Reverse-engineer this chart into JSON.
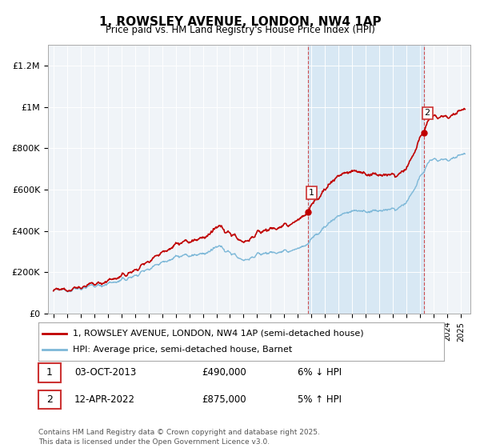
{
  "title": "1, ROWSLEY AVENUE, LONDON, NW4 1AP",
  "subtitle": "Price paid vs. HM Land Registry's House Price Index (HPI)",
  "legend_line1": "1, ROWSLEY AVENUE, LONDON, NW4 1AP (semi-detached house)",
  "legend_line2": "HPI: Average price, semi-detached house, Barnet",
  "footnote": "Contains HM Land Registry data © Crown copyright and database right 2025.\nThis data is licensed under the Open Government Licence v3.0.",
  "transaction1_label": "1",
  "transaction1_date": "03-OCT-2013",
  "transaction1_price": "£490,000",
  "transaction1_hpi": "6% ↓ HPI",
  "transaction2_label": "2",
  "transaction2_date": "12-APR-2022",
  "transaction2_price": "£875,000",
  "transaction2_hpi": "5% ↑ HPI",
  "hpi_color": "#7db8d8",
  "price_color": "#c00000",
  "vline_color": "#cc3333",
  "bg_color": "#f0f4f8",
  "shade_color": "#d8e8f4",
  "ylim_min": 0,
  "ylim_max": 1300000,
  "t1": 2013.75,
  "v1": 490000,
  "t2": 2022.28,
  "v2": 875000
}
